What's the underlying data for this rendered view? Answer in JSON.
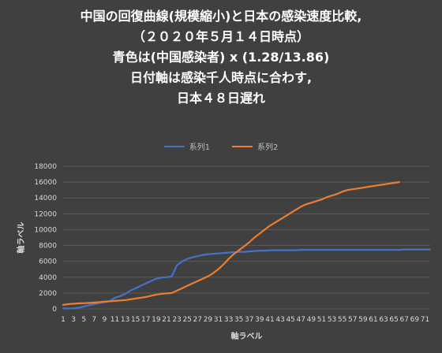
{
  "title_lines": [
    "中国の回復曲線(規模縮小)と日本の感染速度比較,",
    "（２０２０年５月１４日時点）",
    "青色は(中国感染者) x (1.28/13.86)",
    "日付軸は感染千人時点に合わす,",
    "日本４８日遅れ"
  ],
  "colors": {
    "series1": "#4472C4",
    "series2": "#ED7D31",
    "background": "#404040",
    "grid": "#595959",
    "text": "#D9D9D9"
  },
  "chart_data": {
    "type": "line",
    "xlabel": "軸ラベル",
    "ylabel": "軸ラベル",
    "ylim": [
      0,
      18000
    ],
    "yticks": [
      0,
      2000,
      4000,
      6000,
      8000,
      10000,
      12000,
      14000,
      16000,
      18000
    ],
    "xlim": [
      1,
      72
    ],
    "xtick_labels": [
      "1",
      "3",
      "5",
      "7",
      "9",
      "11",
      "13",
      "15",
      "17",
      "19",
      "21",
      "23",
      "25",
      "27",
      "29",
      "31",
      "33",
      "35",
      "37",
      "39",
      "41",
      "43",
      "45",
      "47",
      "49",
      "51",
      "53",
      "55",
      "57",
      "59",
      "61",
      "63",
      "65",
      "67",
      "69",
      "71"
    ],
    "grid": true,
    "legend_position": "top",
    "series": [
      {
        "name": "系列1",
        "color": "#4472C4",
        "x": [
          1,
          2,
          3,
          4,
          5,
          6,
          7,
          8,
          9,
          10,
          11,
          12,
          13,
          14,
          15,
          16,
          17,
          18,
          19,
          20,
          21,
          22,
          23,
          24,
          25,
          26,
          27,
          28,
          29,
          30,
          31,
          32,
          33,
          34,
          35,
          36,
          37,
          38,
          39,
          40,
          41,
          42,
          43,
          44,
          45,
          46,
          47,
          48,
          49,
          50,
          51,
          52,
          53,
          54,
          55,
          56,
          57,
          58,
          59,
          60,
          61,
          62,
          63,
          64,
          65,
          66,
          67,
          68,
          69,
          70,
          71,
          72
        ],
        "values": [
          50,
          60,
          80,
          150,
          300,
          450,
          600,
          750,
          850,
          950,
          1400,
          1600,
          1900,
          2300,
          2600,
          2900,
          3200,
          3500,
          3800,
          3950,
          4000,
          4100,
          5500,
          6000,
          6300,
          6500,
          6650,
          6800,
          6900,
          6950,
          7000,
          7050,
          7100,
          7150,
          7200,
          7200,
          7250,
          7300,
          7350,
          7350,
          7400,
          7400,
          7400,
          7400,
          7400,
          7400,
          7450,
          7450,
          7450,
          7450,
          7450,
          7450,
          7450,
          7450,
          7450,
          7450,
          7450,
          7450,
          7450,
          7450,
          7450,
          7450,
          7450,
          7450,
          7450,
          7450,
          7500,
          7500,
          7500,
          7500,
          7500,
          7500
        ]
      },
      {
        "name": "系列2",
        "color": "#ED7D31",
        "x": [
          1,
          2,
          3,
          4,
          5,
          6,
          7,
          8,
          9,
          10,
          11,
          12,
          13,
          14,
          15,
          16,
          17,
          18,
          19,
          20,
          21,
          22,
          23,
          24,
          25,
          26,
          27,
          28,
          29,
          30,
          31,
          32,
          33,
          34,
          35,
          36,
          37,
          38,
          39,
          40,
          41,
          42,
          43,
          44,
          45,
          46,
          47,
          48,
          49,
          50,
          51,
          52,
          53,
          54,
          55,
          56,
          57,
          58,
          59,
          60,
          61,
          62,
          63,
          64,
          65,
          66
        ],
        "values": [
          500,
          600,
          650,
          700,
          720,
          750,
          800,
          850,
          900,
          950,
          1000,
          1050,
          1100,
          1200,
          1300,
          1400,
          1500,
          1650,
          1800,
          1900,
          1950,
          2000,
          2300,
          2600,
          2900,
          3200,
          3500,
          3800,
          4100,
          4500,
          5000,
          5600,
          6300,
          6900,
          7400,
          7900,
          8400,
          9000,
          9500,
          10000,
          10500,
          10900,
          11300,
          11700,
          12100,
          12500,
          12900,
          13200,
          13400,
          13600,
          13800,
          14100,
          14300,
          14500,
          14800,
          15000,
          15100,
          15200,
          15300,
          15400,
          15500,
          15600,
          15700,
          15800,
          15900,
          16000
        ]
      }
    ]
  }
}
